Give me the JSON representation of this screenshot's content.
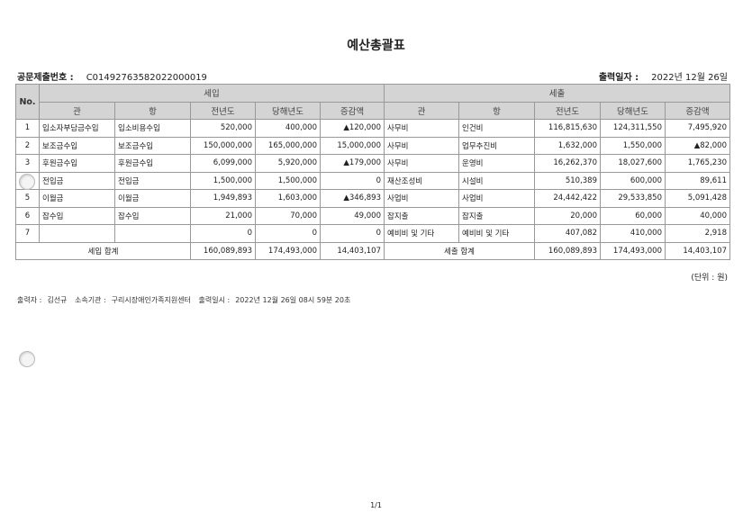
{
  "title": "예산총괄표",
  "doc_number": {
    "label": "공문제출번호 :",
    "value": "C01492763582022000019"
  },
  "output_date": {
    "label": "출력일자 :",
    "value": "2022년 12월 26일"
  },
  "table": {
    "no_header": "No.",
    "income_header": "세입",
    "expense_header": "세출",
    "sub_headers": [
      "관",
      "항",
      "전년도",
      "당해년도",
      "증감액"
    ],
    "rows": [
      {
        "no": "1",
        "in": [
          "입소자부담금수입",
          "입소비용수입",
          "520,000",
          "400,000",
          "▲120,000"
        ],
        "out": [
          "사무비",
          "인건비",
          "116,815,630",
          "124,311,550",
          "7,495,920"
        ]
      },
      {
        "no": "2",
        "in": [
          "보조금수입",
          "보조금수입",
          "150,000,000",
          "165,000,000",
          "15,000,000"
        ],
        "out": [
          "사무비",
          "업무추진비",
          "1,632,000",
          "1,550,000",
          "▲82,000"
        ]
      },
      {
        "no": "3",
        "in": [
          "후원금수입",
          "후원금수입",
          "6,099,000",
          "5,920,000",
          "▲179,000"
        ],
        "out": [
          "사무비",
          "운영비",
          "16,262,370",
          "18,027,600",
          "1,765,230"
        ]
      },
      {
        "no": "",
        "in": [
          "전입금",
          "전입금",
          "1,500,000",
          "1,500,000",
          "0"
        ],
        "out": [
          "재산조성비",
          "시설비",
          "510,389",
          "600,000",
          "89,611"
        ]
      },
      {
        "no": "5",
        "in": [
          "이월금",
          "이월금",
          "1,949,893",
          "1,603,000",
          "▲346,893"
        ],
        "out": [
          "사업비",
          "사업비",
          "24,442,422",
          "29,533,850",
          "5,091,428"
        ]
      },
      {
        "no": "6",
        "in": [
          "잡수입",
          "잡수입",
          "21,000",
          "70,000",
          "49,000"
        ],
        "out": [
          "잡지출",
          "잡지출",
          "20,000",
          "60,000",
          "40,000"
        ]
      },
      {
        "no": "7",
        "in": [
          "",
          "",
          "0",
          "0",
          "0"
        ],
        "out": [
          "예비비 및 기타",
          "예비비 및 기타",
          "407,082",
          "410,000",
          "2,918"
        ]
      }
    ],
    "income_total": {
      "label": "세입 합계",
      "values": [
        "160,089,893",
        "174,493,000",
        "14,403,107"
      ]
    },
    "expense_total": {
      "label": "세출 합계",
      "values": [
        "160,089,893",
        "174,493,000",
        "14,403,107"
      ]
    }
  },
  "unit": "(단위 : 원)",
  "footer": {
    "printer_label": "출력자 :",
    "printer": "김선규",
    "org_label": "소속기관 :",
    "org": "구리시장애인가족지원센터",
    "time_label": "출력일시 :",
    "time": "2022년 12월 26일 08시 59분 20초"
  },
  "page": "1/1"
}
